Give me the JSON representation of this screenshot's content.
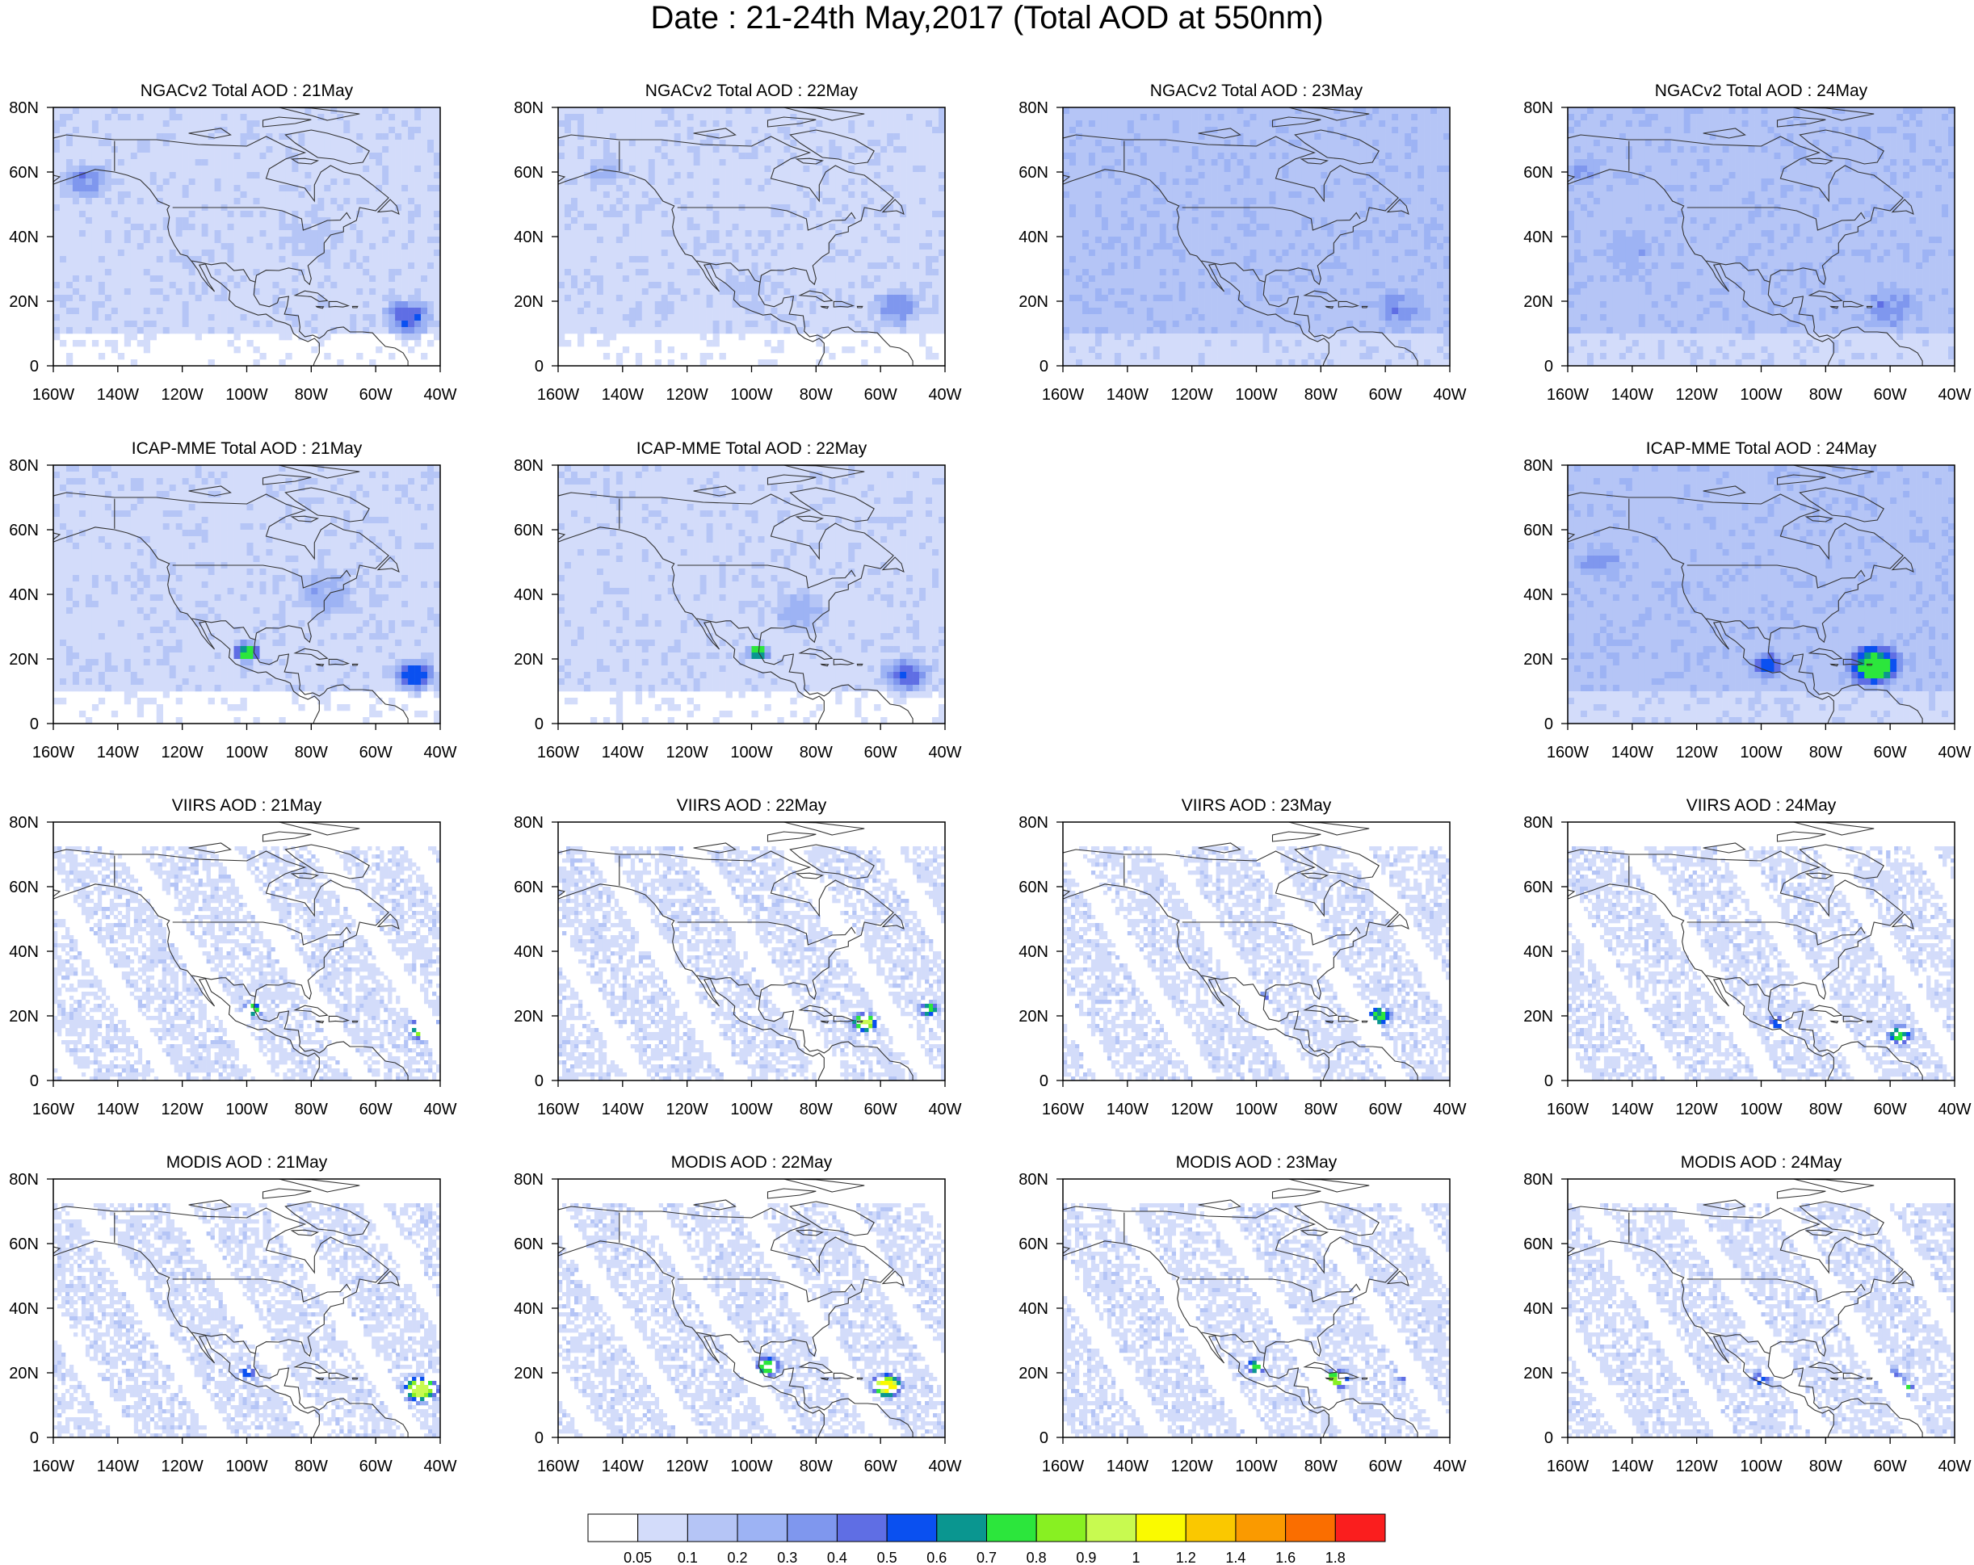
{
  "figure": {
    "title": "Date : 21-24th May,2017 (Total AOD at 550nm)"
  },
  "chart_data": {
    "type": "heatmap",
    "title": "Date : 21-24th May,2017 (Total AOD at 550nm)",
    "lat_ticks": [
      "80N",
      "60N",
      "40N",
      "20N",
      "0"
    ],
    "lon_ticks": [
      "160W",
      "140W",
      "120W",
      "100W",
      "80W",
      "60W",
      "40W"
    ],
    "xlim": [
      -160,
      -40
    ],
    "ylim": [
      0,
      80
    ],
    "grid": false,
    "colorbar": {
      "labels": [
        "0.05",
        "0.1",
        "0.2",
        "0.3",
        "0.4",
        "0.5",
        "0.6",
        "0.7",
        "0.8",
        "0.9",
        "1",
        "1.2",
        "1.4",
        "1.6",
        "1.8"
      ],
      "colors": [
        "#ffffff",
        "#d3dcfa",
        "#b5c5f6",
        "#9db3f4",
        "#7f97ee",
        "#5f6ee4",
        "#0a50f0",
        "#0a9690",
        "#2ce63c",
        "#88f022",
        "#c8fa50",
        "#fafa00",
        "#fac800",
        "#fa9a00",
        "#fa6e00",
        "#fa1e1e"
      ]
    },
    "panels": [
      {
        "id": "ngac-21",
        "title": "NGACv2 Total AOD : 21May",
        "row": 0,
        "col": 0,
        "kind": "model",
        "base_level": 1,
        "plumes": [
          {
            "lon": -150,
            "lat": 57,
            "r": 9,
            "level": 4
          },
          {
            "lon": -50,
            "lat": 15,
            "r": 9,
            "level": 5
          },
          {
            "lon": -80,
            "lat": 40,
            "r": 12,
            "level": 2
          }
        ]
      },
      {
        "id": "ngac-22",
        "title": "NGACv2 Total AOD : 22May",
        "row": 0,
        "col": 1,
        "kind": "model",
        "base_level": 1,
        "plumes": [
          {
            "lon": -145,
            "lat": 60,
            "r": 7,
            "level": 3
          },
          {
            "lon": -55,
            "lat": 18,
            "r": 9,
            "level": 4
          },
          {
            "lon": -100,
            "lat": 25,
            "r": 10,
            "level": 2
          }
        ]
      },
      {
        "id": "ngac-23",
        "title": "NGACv2 Total AOD : 23May",
        "row": 0,
        "col": 2,
        "kind": "model",
        "base_level": 2,
        "plumes": [
          {
            "lon": -55,
            "lat": 18,
            "r": 9,
            "level": 4
          },
          {
            "lon": -140,
            "lat": 40,
            "r": 14,
            "level": 2
          }
        ]
      },
      {
        "id": "ngac-24",
        "title": "NGACv2 Total AOD : 24May",
        "row": 0,
        "col": 3,
        "kind": "model",
        "base_level": 2,
        "plumes": [
          {
            "lon": -155,
            "lat": 60,
            "r": 6,
            "level": 4
          },
          {
            "lon": -60,
            "lat": 18,
            "r": 10,
            "level": 4
          },
          {
            "lon": -140,
            "lat": 35,
            "r": 10,
            "level": 3
          }
        ]
      },
      {
        "id": "icap-21",
        "title": "ICAP-MME Total AOD : 21May",
        "row": 1,
        "col": 0,
        "kind": "model",
        "base_level": 1,
        "plumes": [
          {
            "lon": -48,
            "lat": 15,
            "r": 8,
            "level": 6
          },
          {
            "lon": -100,
            "lat": 22,
            "r": 5,
            "level": 8
          },
          {
            "lon": -75,
            "lat": 40,
            "r": 12,
            "level": 3
          }
        ]
      },
      {
        "id": "icap-22",
        "title": "ICAP-MME Total AOD : 22May",
        "row": 1,
        "col": 1,
        "kind": "model",
        "base_level": 1,
        "plumes": [
          {
            "lon": -52,
            "lat": 15,
            "r": 9,
            "level": 5
          },
          {
            "lon": -98,
            "lat": 22,
            "r": 4,
            "level": 8
          },
          {
            "lon": -85,
            "lat": 35,
            "r": 10,
            "level": 3
          }
        ]
      },
      {
        "id": "icap-24",
        "title": "ICAP-MME Total AOD : 24May",
        "row": 1,
        "col": 3,
        "kind": "model",
        "base_level": 2,
        "plumes": [
          {
            "lon": -65,
            "lat": 18,
            "r": 10,
            "level": 8
          },
          {
            "lon": -98,
            "lat": 18,
            "r": 6,
            "level": 6
          },
          {
            "lon": -150,
            "lat": 50,
            "r": 8,
            "level": 4
          }
        ]
      },
      {
        "id": "viirs-21",
        "title": "VIIRS AOD : 21May",
        "row": 2,
        "col": 0,
        "kind": "satellite",
        "base_level": 1,
        "plumes": [
          {
            "lon": -45,
            "lat": 16,
            "r": 6,
            "level": 10
          },
          {
            "lon": -98,
            "lat": 22,
            "r": 4,
            "level": 8
          }
        ]
      },
      {
        "id": "viirs-22",
        "title": "VIIRS AOD : 22May",
        "row": 2,
        "col": 1,
        "kind": "satellite",
        "base_level": 1,
        "plumes": [
          {
            "lon": -65,
            "lat": 18,
            "r": 5,
            "level": 10
          },
          {
            "lon": -45,
            "lat": 22,
            "r": 4,
            "level": 8
          }
        ]
      },
      {
        "id": "viirs-23",
        "title": "VIIRS AOD : 23May",
        "row": 2,
        "col": 2,
        "kind": "satellite",
        "base_level": 1,
        "plumes": [
          {
            "lon": -62,
            "lat": 20,
            "r": 5,
            "level": 8
          },
          {
            "lon": -100,
            "lat": 25,
            "r": 5,
            "level": 7
          }
        ]
      },
      {
        "id": "viirs-24",
        "title": "VIIRS AOD : 24May",
        "row": 2,
        "col": 3,
        "kind": "satellite",
        "base_level": 1,
        "plumes": [
          {
            "lon": -57,
            "lat": 14,
            "r": 5,
            "level": 8
          },
          {
            "lon": -95,
            "lat": 18,
            "r": 4,
            "level": 6
          }
        ]
      },
      {
        "id": "modis-21",
        "title": "MODIS AOD : 21May",
        "row": 3,
        "col": 0,
        "kind": "satellite",
        "base_level": 1,
        "plumes": [
          {
            "lon": -46,
            "lat": 15,
            "r": 7,
            "level": 10
          },
          {
            "lon": -100,
            "lat": 20,
            "r": 4,
            "level": 6
          }
        ]
      },
      {
        "id": "modis-22",
        "title": "MODIS AOD : 22May",
        "row": 3,
        "col": 1,
        "kind": "satellite",
        "base_level": 1,
        "plumes": [
          {
            "lon": -58,
            "lat": 16,
            "r": 6,
            "level": 11
          },
          {
            "lon": -95,
            "lat": 22,
            "r": 5,
            "level": 8
          }
        ]
      },
      {
        "id": "modis-23",
        "title": "MODIS AOD : 23May",
        "row": 3,
        "col": 2,
        "kind": "satellite",
        "base_level": 1,
        "plumes": [
          {
            "lon": -75,
            "lat": 18,
            "r": 5,
            "level": 9
          },
          {
            "lon": -100,
            "lat": 22,
            "r": 4,
            "level": 8
          },
          {
            "lon": -53,
            "lat": 20,
            "r": 5,
            "level": 7
          }
        ]
      },
      {
        "id": "modis-24",
        "title": "MODIS AOD : 24May",
        "row": 3,
        "col": 3,
        "kind": "satellite",
        "base_level": 1,
        "plumes": [
          {
            "lon": -60,
            "lat": 18,
            "r": 6,
            "level": 6
          },
          {
            "lon": -55,
            "lat": 15,
            "r": 3,
            "level": 8
          },
          {
            "lon": -100,
            "lat": 18,
            "r": 4,
            "level": 6
          }
        ]
      }
    ]
  }
}
